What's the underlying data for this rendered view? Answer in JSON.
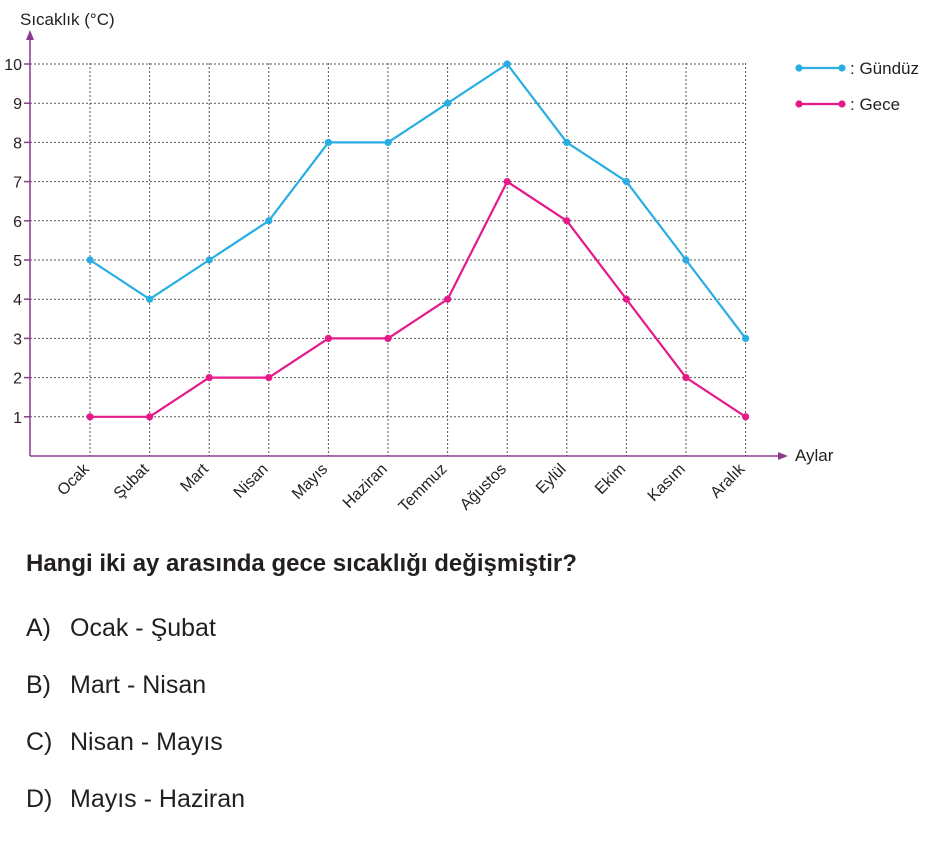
{
  "chart_data": {
    "type": "line",
    "ylabel": "Sıcaklık (°C)",
    "xlabel": "Aylar",
    "categories": [
      "Ocak",
      "Şubat",
      "Mart",
      "Nisan",
      "Mayıs",
      "Haziran",
      "Temmuz",
      "Ağustos",
      "Eylül",
      "Ekim",
      "Kasım",
      "Aralık"
    ],
    "y_ticks": [
      "1",
      "2",
      "3",
      "4",
      "5",
      "6",
      "7",
      "8",
      "9",
      "10"
    ],
    "ylim": [
      0,
      10
    ],
    "grid": true,
    "legend_position": "top-right",
    "series": [
      {
        "name": ": Gündüz",
        "color": "#29aee3",
        "values": [
          5,
          4,
          5,
          6,
          8,
          8,
          9,
          10,
          8,
          7,
          5,
          3
        ]
      },
      {
        "name": ": Gece",
        "color": "#e5198a",
        "values": [
          1,
          1,
          2,
          2,
          3,
          3,
          4,
          7,
          6,
          4,
          2,
          1
        ]
      }
    ],
    "axis_color": "#8b3a8f"
  },
  "question": {
    "text": "Hangi iki ay arasında gece sıcaklığı değişmiştir?",
    "options": [
      {
        "letter": "A)",
        "text": "Ocak - Şubat"
      },
      {
        "letter": "B)",
        "text": "Mart - Nisan"
      },
      {
        "letter": "C)",
        "text": "Nisan - Mayıs"
      },
      {
        "letter": "D)",
        "text": "Mayıs - Haziran"
      }
    ]
  }
}
